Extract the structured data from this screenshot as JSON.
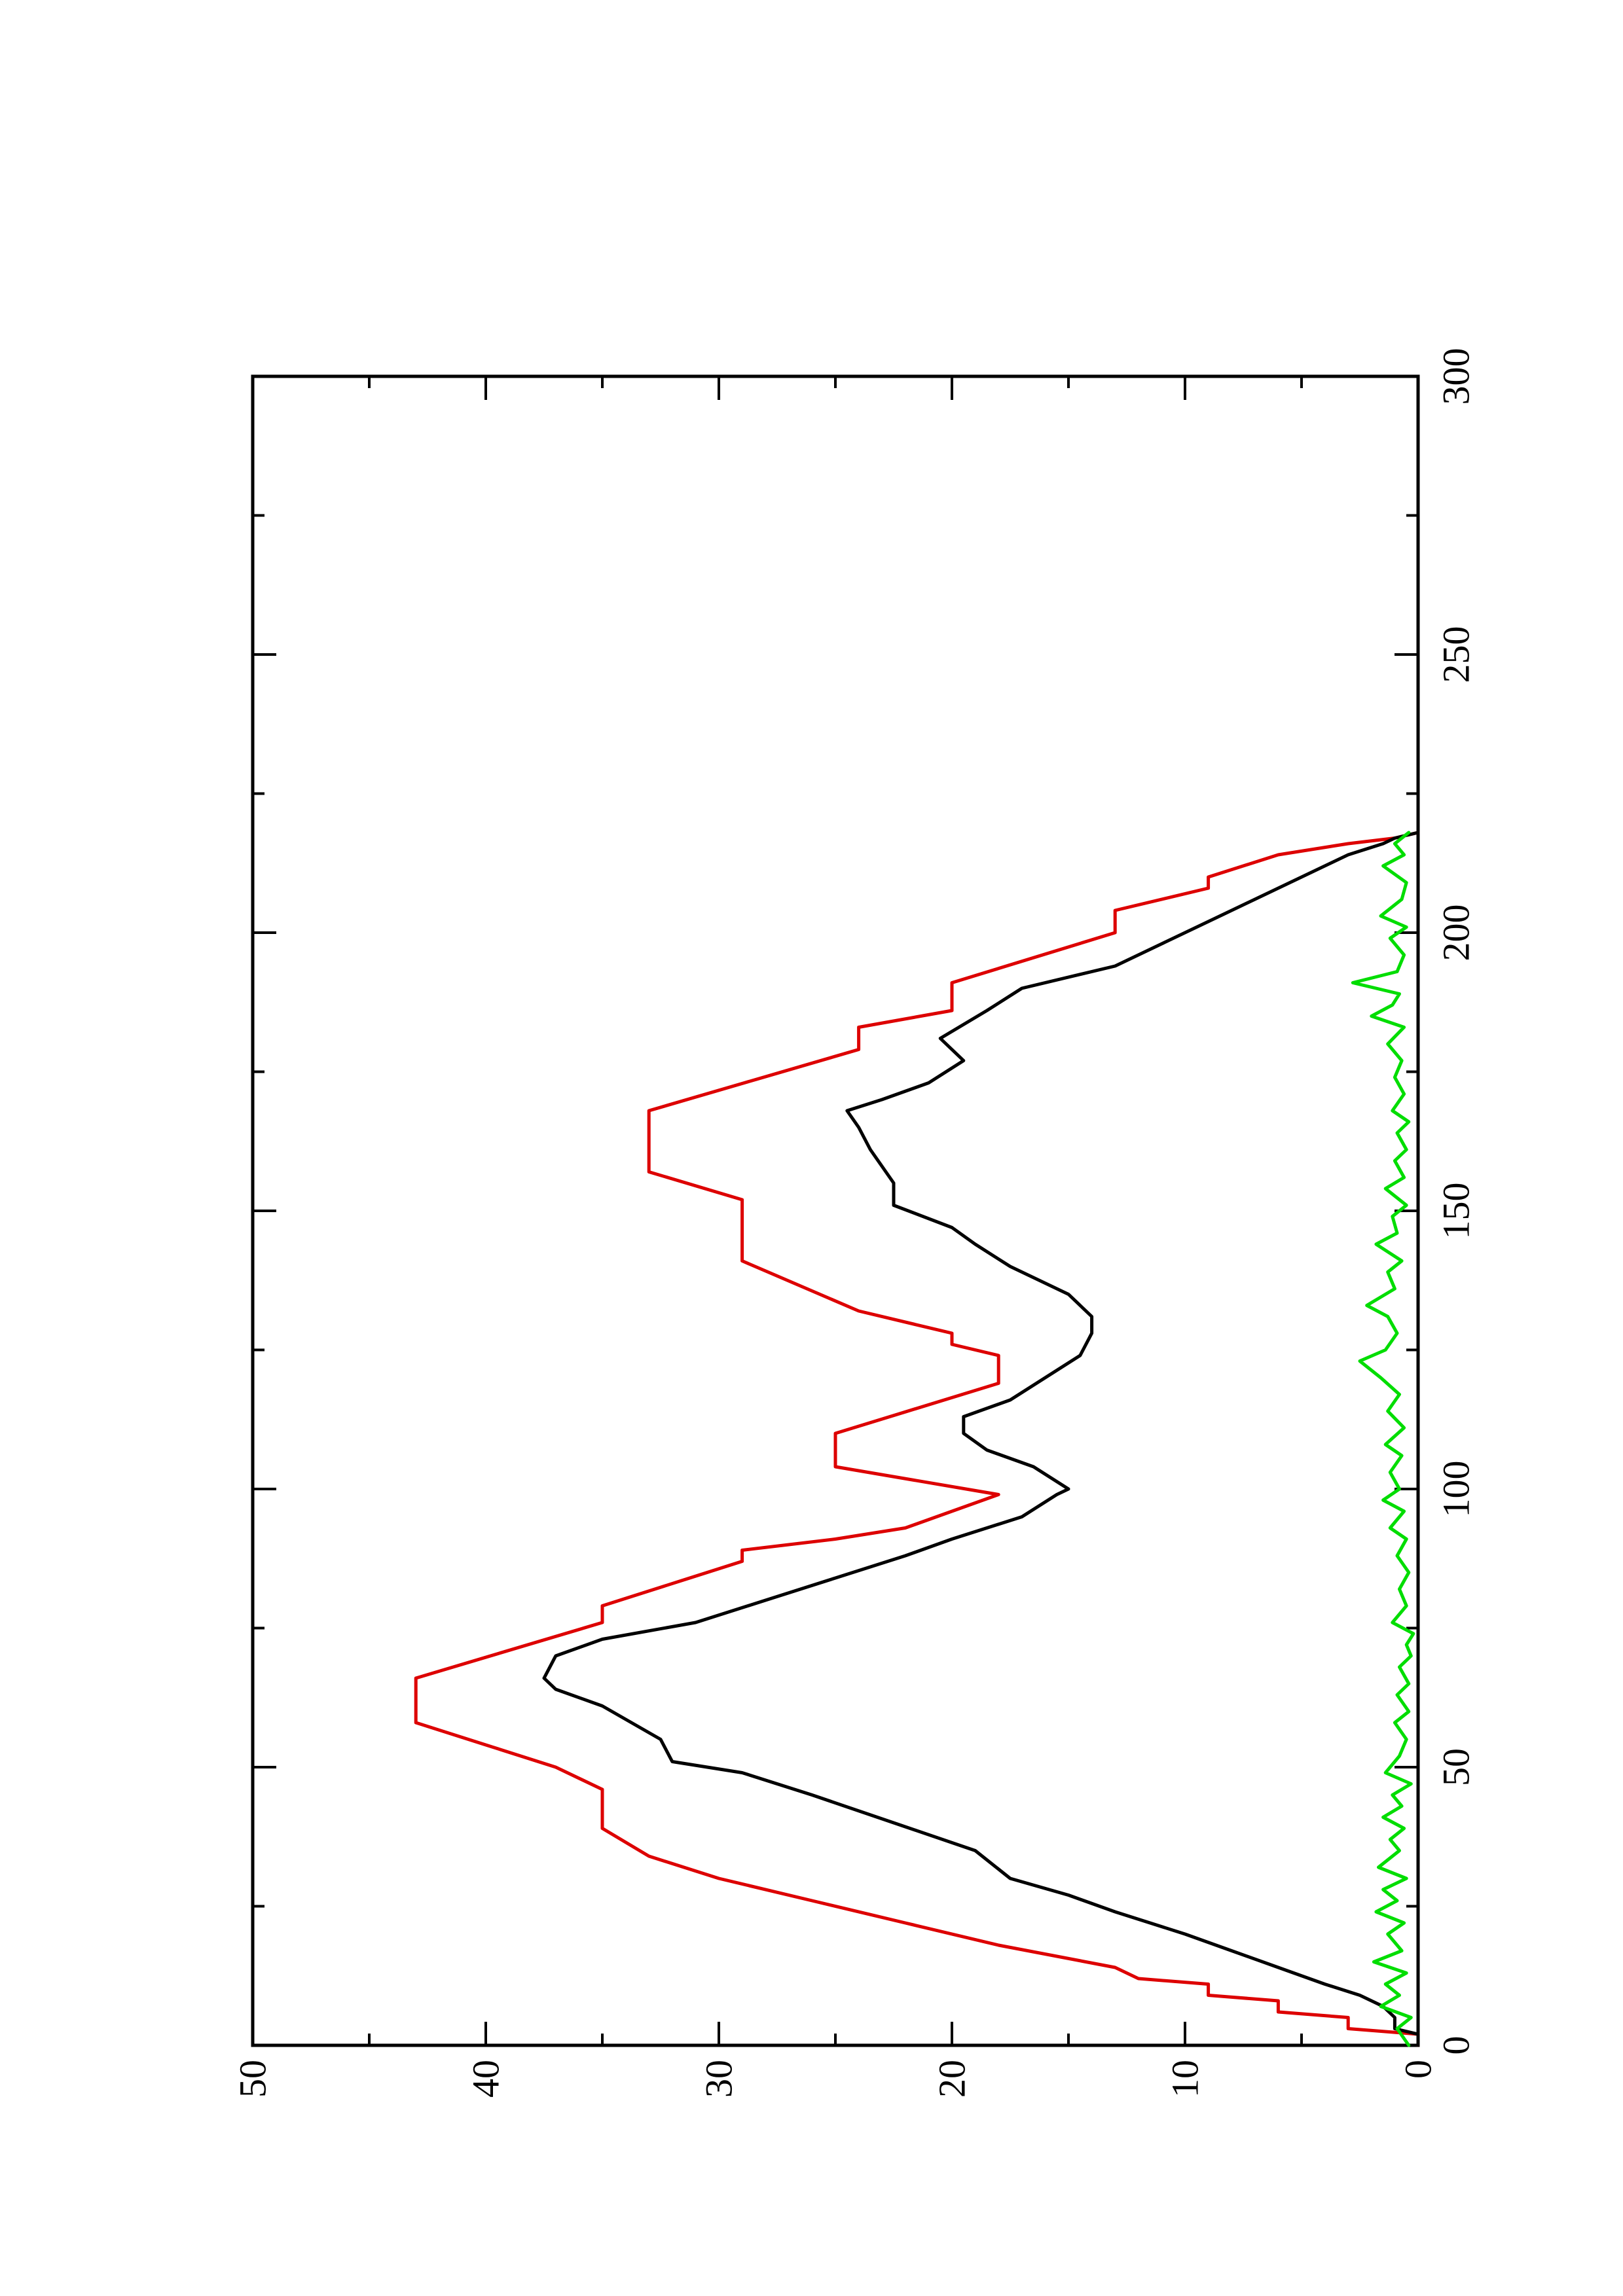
{
  "chart_data": {
    "type": "line",
    "title": "",
    "xlabel": "",
    "ylabel": "",
    "orientation": "rotated 90 degrees counter-clockwise (landscape figure on portrait page)",
    "xlim": [
      0,
      300
    ],
    "ylim": [
      0,
      50
    ],
    "x_major_ticks": [
      0,
      50,
      100,
      150,
      200,
      250,
      300
    ],
    "x_minor_ticks": [
      25,
      75,
      125,
      175,
      225,
      275
    ],
    "y_major_ticks": [
      0,
      10,
      20,
      30,
      40,
      50
    ],
    "y_minor_ticks": [
      5,
      15,
      25,
      35,
      45
    ],
    "x_tick_labels": [
      "0",
      "50",
      "100",
      "150",
      "200",
      "250",
      "300"
    ],
    "y_tick_labels": [
      "0",
      "10",
      "20",
      "30",
      "40",
      "50"
    ],
    "grid": false,
    "legend": "none",
    "series": [
      {
        "color": "#dd0000",
        "points": [
          [
            0,
            0
          ],
          [
            2,
            0
          ],
          [
            3,
            3
          ],
          [
            5,
            3
          ],
          [
            6,
            6
          ],
          [
            8,
            6
          ],
          [
            9,
            9
          ],
          [
            11,
            9
          ],
          [
            12,
            12
          ],
          [
            14,
            13
          ],
          [
            18,
            18
          ],
          [
            22,
            22
          ],
          [
            26,
            26
          ],
          [
            30,
            30
          ],
          [
            34,
            33
          ],
          [
            39,
            35
          ],
          [
            46,
            35
          ],
          [
            50,
            37
          ],
          [
            58,
            43
          ],
          [
            66,
            43
          ],
          [
            76,
            35
          ],
          [
            79,
            35
          ],
          [
            87,
            29
          ],
          [
            89,
            29
          ],
          [
            91,
            25
          ],
          [
            93,
            22
          ],
          [
            99,
            18
          ],
          [
            104,
            25
          ],
          [
            110,
            25
          ],
          [
            119,
            18
          ],
          [
            124,
            18
          ],
          [
            126,
            20
          ],
          [
            128,
            20
          ],
          [
            132,
            24
          ],
          [
            141,
            29
          ],
          [
            152,
            29
          ],
          [
            157,
            33
          ],
          [
            168,
            33
          ],
          [
            179,
            24
          ],
          [
            183,
            24
          ],
          [
            186,
            20
          ],
          [
            191,
            20
          ],
          [
            200,
            13
          ],
          [
            204,
            13
          ],
          [
            208,
            9
          ],
          [
            210,
            9
          ],
          [
            214,
            6
          ],
          [
            216,
            3
          ],
          [
            217,
            1
          ],
          [
            218,
            0
          ]
        ]
      },
      {
        "color": "#000000",
        "points": [
          [
            0,
            0
          ],
          [
            2,
            0
          ],
          [
            3,
            1
          ],
          [
            5,
            1
          ],
          [
            7,
            1.5
          ],
          [
            9,
            2.5
          ],
          [
            11,
            4
          ],
          [
            14,
            6
          ],
          [
            17,
            8
          ],
          [
            20,
            10
          ],
          [
            24,
            13
          ],
          [
            27,
            15
          ],
          [
            30,
            17.5
          ],
          [
            35,
            19
          ],
          [
            40,
            22.5
          ],
          [
            45,
            26
          ],
          [
            49,
            29
          ],
          [
            51,
            32
          ],
          [
            55,
            32.5
          ],
          [
            61,
            35
          ],
          [
            64,
            37
          ],
          [
            66,
            37.5
          ],
          [
            70,
            37
          ],
          [
            73,
            35
          ],
          [
            76,
            31
          ],
          [
            80,
            28
          ],
          [
            84,
            25
          ],
          [
            88,
            22
          ],
          [
            91,
            20
          ],
          [
            95,
            17
          ],
          [
            99,
            15.5
          ],
          [
            100,
            15
          ],
          [
            104,
            16.5
          ],
          [
            107,
            18.5
          ],
          [
            110,
            19.5
          ],
          [
            113,
            19.5
          ],
          [
            116,
            17.5
          ],
          [
            120,
            16
          ],
          [
            124,
            14.5
          ],
          [
            128,
            14
          ],
          [
            131,
            14
          ],
          [
            135,
            15
          ],
          [
            140,
            17.5
          ],
          [
            144,
            19
          ],
          [
            147,
            20
          ],
          [
            151,
            22.5
          ],
          [
            155,
            22.5
          ],
          [
            158,
            23
          ],
          [
            161,
            23.5
          ],
          [
            165,
            24
          ],
          [
            168,
            24.5
          ],
          [
            170,
            23
          ],
          [
            173,
            21
          ],
          [
            177,
            19.5
          ],
          [
            181,
            20.5
          ],
          [
            186,
            18.5
          ],
          [
            190,
            17
          ],
          [
            194,
            13
          ],
          [
            198,
            11
          ],
          [
            202,
            9
          ],
          [
            206,
            7
          ],
          [
            210,
            5
          ],
          [
            214,
            3
          ],
          [
            216,
            1.5
          ],
          [
            217,
            1
          ],
          [
            218,
            0
          ]
        ]
      },
      {
        "color": "#00dd00",
        "points": [
          [
            0,
            0.4
          ],
          [
            3,
            0.9
          ],
          [
            5,
            0.3
          ],
          [
            7,
            1.6
          ],
          [
            9,
            0.8
          ],
          [
            11,
            1.4
          ],
          [
            13,
            0.5
          ],
          [
            15,
            1.9
          ],
          [
            17,
            0.7
          ],
          [
            20,
            1.3
          ],
          [
            22,
            0.6
          ],
          [
            24,
            1.8
          ],
          [
            26,
            0.9
          ],
          [
            28,
            1.5
          ],
          [
            30,
            0.5
          ],
          [
            32,
            1.7
          ],
          [
            35,
            0.8
          ],
          [
            37,
            1.2
          ],
          [
            39,
            0.6
          ],
          [
            41,
            1.5
          ],
          [
            43,
            0.7
          ],
          [
            45,
            1.1
          ],
          [
            47,
            0.3
          ],
          [
            49,
            1.4
          ],
          [
            52,
            0.8
          ],
          [
            55,
            0.5
          ],
          [
            58,
            1.0
          ],
          [
            60,
            0.4
          ],
          [
            63,
            0.9
          ],
          [
            65,
            0.4
          ],
          [
            68,
            0.8
          ],
          [
            70,
            0.3
          ],
          [
            72,
            0.5
          ],
          [
            74,
            0.2
          ],
          [
            76,
            1.1
          ],
          [
            79,
            0.5
          ],
          [
            82,
            0.8
          ],
          [
            85,
            0.4
          ],
          [
            88,
            0.9
          ],
          [
            91,
            0.5
          ],
          [
            93,
            1.2
          ],
          [
            96,
            0.6
          ],
          [
            98,
            1.5
          ],
          [
            100,
            0.8
          ],
          [
            103,
            1.2
          ],
          [
            106,
            0.7
          ],
          [
            108,
            1.4
          ],
          [
            111,
            0.6
          ],
          [
            114,
            1.3
          ],
          [
            117,
            0.8
          ],
          [
            120,
            1.6
          ],
          [
            123,
            2.5
          ],
          [
            125,
            1.4
          ],
          [
            128,
            0.9
          ],
          [
            131,
            1.3
          ],
          [
            133,
            2.2
          ],
          [
            136,
            1.0
          ],
          [
            139,
            1.3
          ],
          [
            141,
            0.7
          ],
          [
            144,
            1.8
          ],
          [
            146,
            0.9
          ],
          [
            149,
            1.1
          ],
          [
            151,
            0.5
          ],
          [
            154,
            1.4
          ],
          [
            156,
            0.6
          ],
          [
            159,
            1.0
          ],
          [
            161,
            0.5
          ],
          [
            164,
            0.9
          ],
          [
            166,
            0.4
          ],
          [
            168,
            1.1
          ],
          [
            171,
            0.6
          ],
          [
            174,
            1.0
          ],
          [
            177,
            0.7
          ],
          [
            180,
            1.3
          ],
          [
            183,
            0.6
          ],
          [
            185,
            2.0
          ],
          [
            187,
            1.1
          ],
          [
            189,
            0.8
          ],
          [
            191,
            2.8
          ],
          [
            193,
            0.9
          ],
          [
            196,
            0.6
          ],
          [
            199,
            1.2
          ],
          [
            201,
            0.5
          ],
          [
            203,
            1.6
          ],
          [
            206,
            0.7
          ],
          [
            209,
            0.5
          ],
          [
            212,
            1.5
          ],
          [
            214,
            0.6
          ],
          [
            216,
            1.0
          ],
          [
            218,
            0.4
          ]
        ]
      }
    ]
  }
}
